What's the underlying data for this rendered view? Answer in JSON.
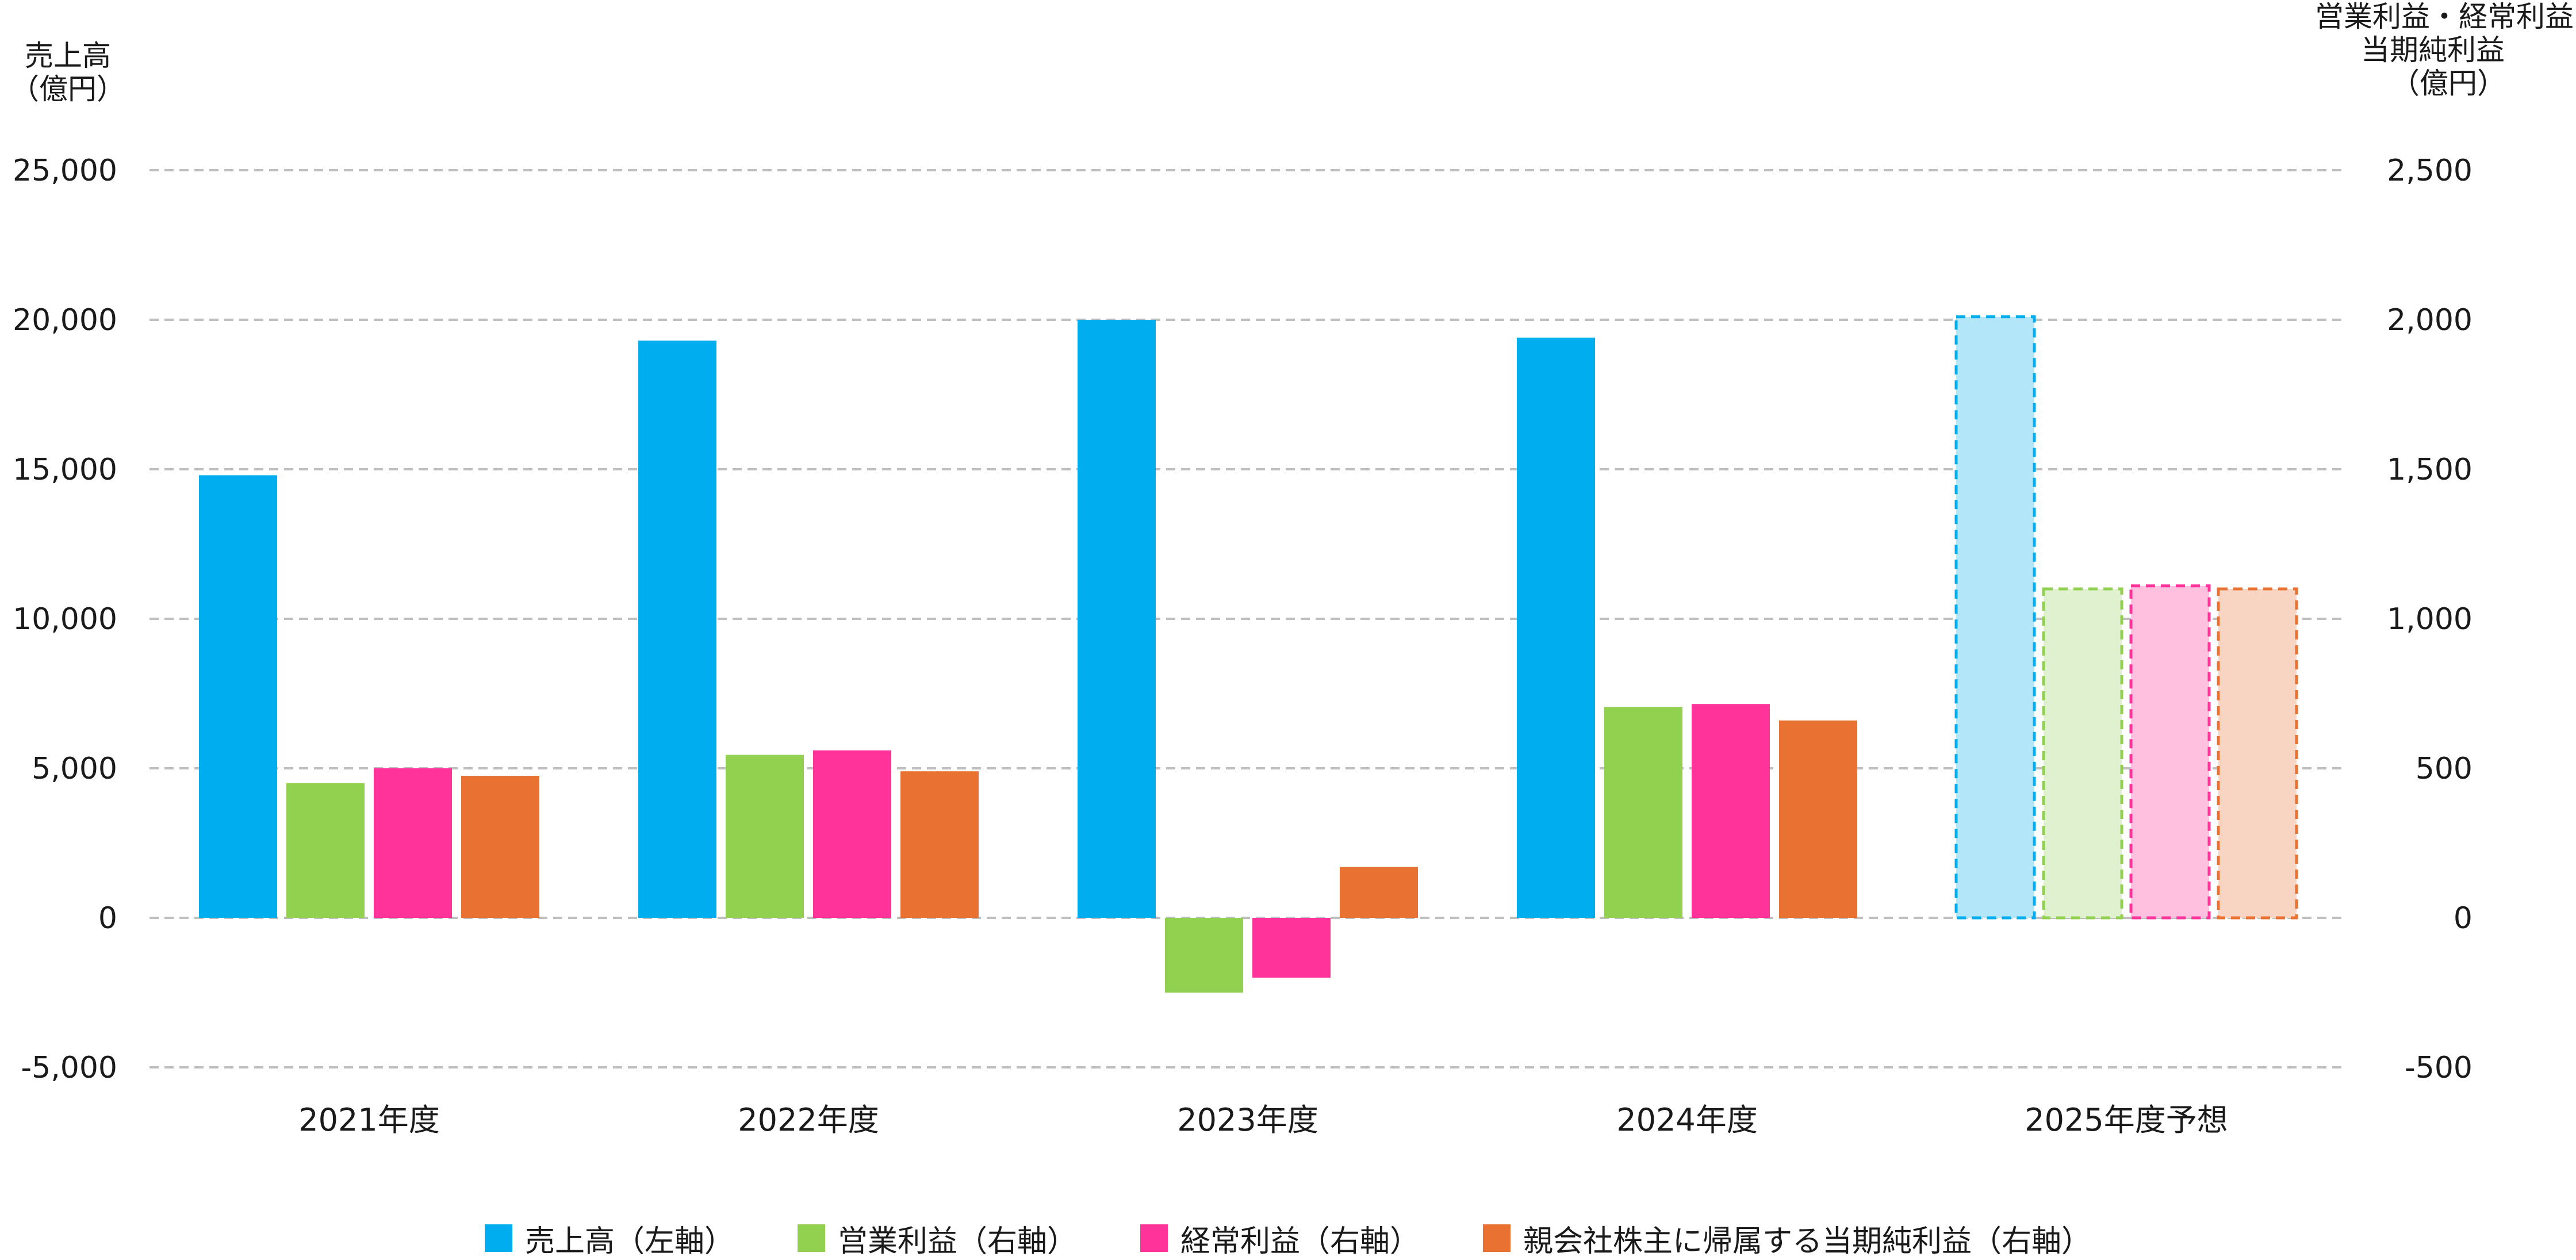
{
  "chart_data": {
    "type": "bar",
    "categories": [
      "2021年度",
      "2022年度",
      "2023年度",
      "2024年度",
      "2025年度予想"
    ],
    "forecast_index": 4,
    "left_axis": {
      "label_lines": [
        "売上高",
        "（億円）"
      ],
      "ylim": [
        -5000,
        25000
      ],
      "ticks": [
        "-5,000",
        "0",
        "5,000",
        "10,000",
        "15,000",
        "20,000",
        "25,000"
      ],
      "tick_values": [
        -5000,
        0,
        5000,
        10000,
        15000,
        20000,
        25000
      ]
    },
    "right_axis": {
      "label_lines": [
        "営業利益・経常利益",
        "当期純利益",
        "（億円）"
      ],
      "ylim": [
        -500,
        2500
      ],
      "ticks": [
        "-500",
        "0",
        "500",
        "1,000",
        "1,500",
        "2,000",
        "2,500"
      ],
      "tick_values": [
        -500,
        0,
        500,
        1000,
        1500,
        2000,
        2500
      ]
    },
    "grid": true,
    "legend_position": "bottom",
    "series": [
      {
        "name": "売上高（左軸）",
        "axis": "left",
        "color": "#00AEEF",
        "forecast_color": "#B3E6F9",
        "values": [
          14800,
          19300,
          20000,
          19400,
          20100
        ]
      },
      {
        "name": "営業利益（右軸）",
        "axis": "right",
        "color": "#92D050",
        "forecast_color": "#DFF1CF",
        "values": [
          450,
          545,
          -250,
          705,
          1100
        ]
      },
      {
        "name": "経常利益（右軸）",
        "axis": "right",
        "color": "#FF3399",
        "forecast_color": "#FFC0E0",
        "values": [
          500,
          560,
          -200,
          715,
          1110
        ]
      },
      {
        "name": "親会社株主に帰属する当期純利益（右軸）",
        "axis": "right",
        "color": "#E97132",
        "forecast_color": "#F8D4C2",
        "values": [
          475,
          490,
          170,
          660,
          1100
        ]
      }
    ]
  }
}
